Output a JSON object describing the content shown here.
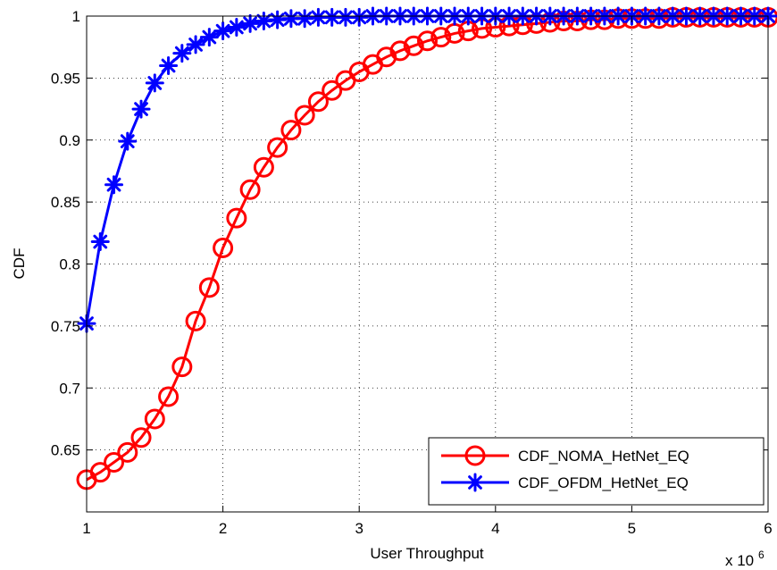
{
  "chart_data": {
    "type": "line",
    "xlabel": "User Throughput",
    "ylabel": "CDF",
    "x_multiplier": "x 10",
    "x_multiplier_exponent": "6",
    "xlim": [
      1,
      6
    ],
    "ylim": [
      0.6,
      1
    ],
    "xticks": [
      1,
      2,
      3,
      4,
      5,
      6
    ],
    "xtick_labels": [
      "1",
      "2",
      "3",
      "4",
      "5",
      "6"
    ],
    "yticks": [
      0.65,
      0.7,
      0.75,
      0.8,
      0.85,
      0.9,
      0.95,
      1
    ],
    "ytick_labels": [
      "0.65",
      "0.7",
      "0.75",
      "0.8",
      "0.85",
      "0.9",
      "0.95",
      "1"
    ],
    "grid": true,
    "legend_position": "bottom-right",
    "x": [
      1.0,
      1.1,
      1.2,
      1.3,
      1.4,
      1.5,
      1.6,
      1.7,
      1.8,
      1.9,
      2.0,
      2.1,
      2.2,
      2.3,
      2.4,
      2.5,
      2.6,
      2.7,
      2.8,
      2.9,
      3.0,
      3.1,
      3.2,
      3.3,
      3.4,
      3.5,
      3.6,
      3.7,
      3.8,
      3.9,
      4.0,
      4.1,
      4.2,
      4.3,
      4.4,
      4.5,
      4.6,
      4.7,
      4.8,
      4.9,
      5.0,
      5.1,
      5.2,
      5.3,
      5.4,
      5.5,
      5.6,
      5.7,
      5.8,
      5.9,
      6.0
    ],
    "series": [
      {
        "name": "CDF_NOMA_HetNet_EQ",
        "color": "#ff0000",
        "marker": "circle",
        "values": [
          0.626,
          0.632,
          0.64,
          0.648,
          0.66,
          0.675,
          0.693,
          0.717,
          0.754,
          0.781,
          0.813,
          0.837,
          0.86,
          0.878,
          0.894,
          0.908,
          0.92,
          0.931,
          0.94,
          0.948,
          0.955,
          0.961,
          0.967,
          0.972,
          0.976,
          0.98,
          0.983,
          0.986,
          0.988,
          0.99,
          0.991,
          0.992,
          0.993,
          0.994,
          0.995,
          0.996,
          0.996,
          0.997,
          0.997,
          0.998,
          0.998,
          0.998,
          0.998,
          0.999,
          0.999,
          0.999,
          0.999,
          0.999,
          0.999,
          0.999,
          0.999
        ]
      },
      {
        "name": "CDF_OFDM_HetNet_EQ",
        "color": "#0000ff",
        "marker": "asterisk",
        "values": [
          0.752,
          0.818,
          0.864,
          0.899,
          0.925,
          0.946,
          0.96,
          0.97,
          0.977,
          0.983,
          0.988,
          0.991,
          0.994,
          0.996,
          0.997,
          0.998,
          0.998,
          0.999,
          0.999,
          0.999,
          0.999,
          1.0,
          1.0,
          1.0,
          1.0,
          1.0,
          1.0,
          1.0,
          1.0,
          1.0,
          1.0,
          1.0,
          1.0,
          1.0,
          1.0,
          1.0,
          1.0,
          1.0,
          1.0,
          1.0,
          1.0,
          1.0,
          1.0,
          1.0,
          1.0,
          1.0,
          1.0,
          1.0,
          1.0,
          1.0,
          1.0
        ]
      }
    ]
  }
}
